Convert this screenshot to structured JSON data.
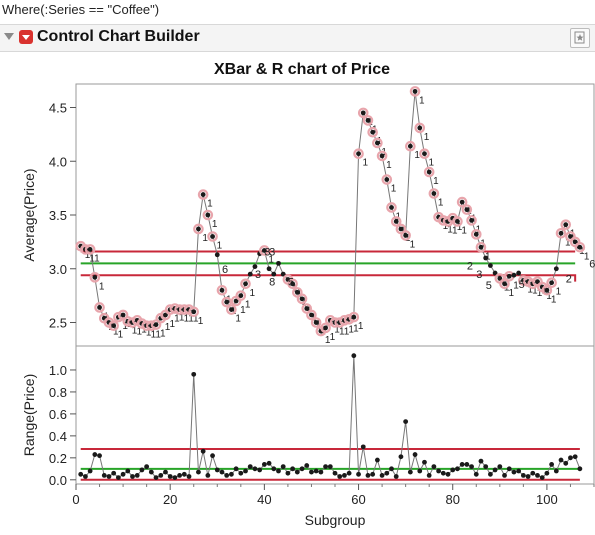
{
  "where_text": "Where(:Series == \"Coffee\")",
  "panel_title": "Control Chart Builder",
  "icons": {
    "disclosure": "disclosure-triangle-icon",
    "menu": "red-triangle-menu-icon",
    "pin": "star-pin-icon"
  },
  "colors": {
    "limit": "#c8283a",
    "center": "#28a428",
    "point": "#1a1a1a",
    "series_line": "#777777",
    "flag": "#e8a5ac"
  },
  "chart_data": {
    "type": "line",
    "title": "XBar & R chart of Price",
    "xlabel": "Subgroup",
    "xlim": [
      0,
      110
    ],
    "x_ticks": [
      0,
      20,
      40,
      60,
      80,
      100
    ],
    "charts": [
      {
        "name": "xbar",
        "ylabel": "Average(Price)",
        "ylim": [
          2.3,
          4.7
        ],
        "y_ticks": [
          2.5,
          3.0,
          3.5,
          4.0,
          4.5
        ],
        "segments": [
          {
            "from": 1,
            "to": 106,
            "center": 3.05,
            "ucl": 3.16,
            "lcl": 2.94
          },
          {
            "from": 101,
            "to": 106,
            "center": 3.05,
            "ucl": 3.16,
            "lcl": 2.88
          }
        ],
        "values": [
          3.21,
          3.18,
          3.18,
          2.92,
          2.64,
          2.54,
          2.5,
          2.47,
          2.55,
          2.57,
          2.51,
          2.5,
          2.52,
          2.49,
          2.47,
          2.47,
          2.48,
          2.54,
          2.57,
          2.62,
          2.63,
          2.62,
          2.62,
          2.62,
          2.6,
          3.37,
          3.69,
          3.5,
          3.3,
          3.13,
          2.8,
          2.69,
          2.62,
          2.7,
          2.75,
          2.86,
          2.95,
          3.02,
          3.14,
          3.17,
          3.0,
          2.95,
          3.05,
          2.95,
          2.9,
          2.86,
          2.78,
          2.72,
          2.63,
          2.57,
          2.5,
          2.42,
          2.45,
          2.52,
          2.5,
          2.5,
          2.52,
          2.53,
          2.55,
          4.07,
          4.45,
          4.38,
          4.27,
          4.17,
          4.05,
          3.83,
          3.57,
          3.44,
          3.37,
          3.31,
          4.14,
          4.65,
          4.31,
          4.07,
          3.9,
          3.7,
          3.48,
          3.45,
          3.44,
          3.47,
          3.44,
          3.62,
          3.55,
          3.45,
          3.32,
          3.2,
          3.1,
          3.03,
          2.96,
          2.91,
          2.86,
          2.93,
          2.94,
          2.96,
          2.89,
          2.88,
          2.86,
          2.88,
          2.83,
          2.8,
          2.87,
          3.0,
          3.33,
          3.41,
          3.3,
          3.25,
          3.2
        ],
        "annotations": [
          {
            "text": "6",
            "x": 31,
            "y": 3.0
          },
          {
            "text": "3",
            "x": 40,
            "y": 3.16
          },
          {
            "text": "3",
            "x": 41,
            "y": 3.16
          },
          {
            "text": "3",
            "x": 38,
            "y": 2.95
          },
          {
            "text": "8",
            "x": 41,
            "y": 2.88
          },
          {
            "text": "5",
            "x": 45,
            "y": 2.88
          },
          {
            "text": "2",
            "x": 83,
            "y": 3.03
          },
          {
            "text": "3",
            "x": 85,
            "y": 2.95
          },
          {
            "text": "5",
            "x": 87,
            "y": 2.85
          },
          {
            "text": "5",
            "x": 94,
            "y": 2.86
          },
          {
            "text": "6",
            "x": 109,
            "y": 3.05
          },
          {
            "text": "2",
            "x": 104,
            "y": 2.91
          }
        ],
        "point_label": "1"
      },
      {
        "name": "range",
        "ylabel": "Range(Price)",
        "ylim": [
          -0.02,
          1.2
        ],
        "y_ticks": [
          0,
          0.2,
          0.4,
          0.6,
          0.8,
          1.0
        ],
        "center": 0.1,
        "ucl": 0.28,
        "lcl": 0,
        "values": [
          0.05,
          0.03,
          0.08,
          0.23,
          0.22,
          0.04,
          0.03,
          0.06,
          0.02,
          0.05,
          0.08,
          0.03,
          0.04,
          0.09,
          0.12,
          0.07,
          0.02,
          0.04,
          0.07,
          0.03,
          0.02,
          0.04,
          0.05,
          0.03,
          0.96,
          0.07,
          0.26,
          0.04,
          0.22,
          0.09,
          0.07,
          0.04,
          0.05,
          0.1,
          0.06,
          0.08,
          0.12,
          0.1,
          0.09,
          0.14,
          0.15,
          0.1,
          0.08,
          0.12,
          0.06,
          0.1,
          0.07,
          0.1,
          0.13,
          0.07,
          0.08,
          0.07,
          0.12,
          0.12,
          0.06,
          0.03,
          0.04,
          0.06,
          1.13,
          0.05,
          0.3,
          0.04,
          0.05,
          0.18,
          0.04,
          0.06,
          0.1,
          0.03,
          0.21,
          0.53,
          0.07,
          0.23,
          0.08,
          0.16,
          0.04,
          0.12,
          0.08,
          0.06,
          0.05,
          0.09,
          0.1,
          0.14,
          0.14,
          0.12,
          0.05,
          0.17,
          0.12,
          0.05,
          0.09,
          0.12,
          0.04,
          0.1,
          0.07,
          0.08,
          0.04,
          0.03,
          0.06,
          0.04,
          0.02,
          0.06,
          0.14,
          0.08,
          0.18,
          0.15,
          0.2,
          0.21,
          0.1
        ]
      }
    ]
  }
}
